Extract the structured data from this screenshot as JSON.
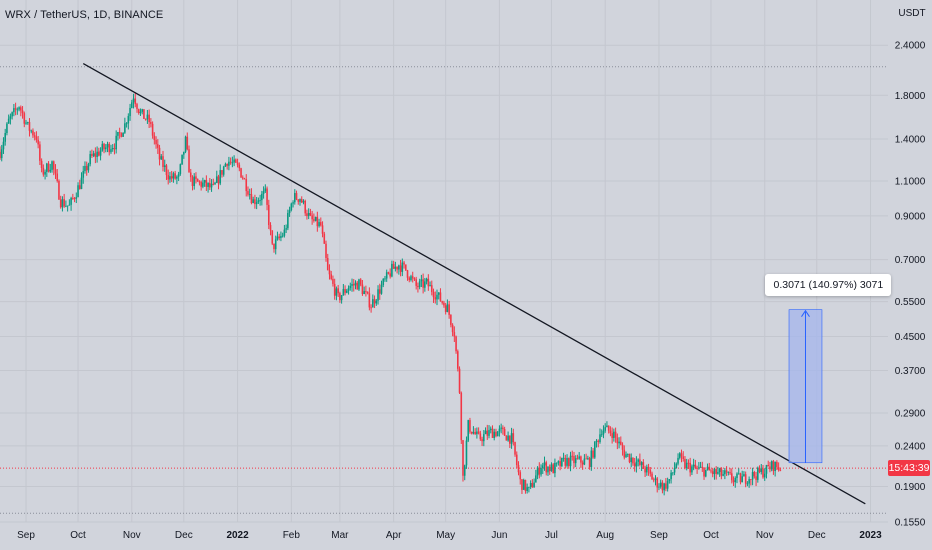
{
  "header": {
    "title": "WRX / TetherUS, 1D, BINANCE"
  },
  "price_tag": {
    "label": "15:43:39",
    "value": 0.2112,
    "color": "#f23645"
  },
  "measure": {
    "label": "0.3071 (140.97%) 3071",
    "from": 0.2178,
    "to": 0.5249,
    "start": "2022-11-15",
    "end": "2022-12-04"
  },
  "colors": {
    "up": "#089981",
    "down": "#f23645",
    "trendline": "#131722",
    "measure_fill": "#a4b6ec",
    "measure_stroke": "#2962ff"
  },
  "chart_data": {
    "type": "candlestick",
    "title": "WRX / TetherUS, 1D, BINANCE",
    "y_unit": "USDT",
    "y_scale": "log",
    "ylim": [
      0.148,
      3.0
    ],
    "xlim": [
      "2022-08-17",
      "2023-01-18"
    ],
    "y_ticks": [
      "2.4000",
      "1.8000",
      "1.4000",
      "1.1000",
      "0.9000",
      "0.7000",
      "0.5500",
      "0.4500",
      "0.3700",
      "0.2900",
      "0.2400",
      "0.1900",
      "0.1550"
    ],
    "x_ticks": [
      {
        "label": "Sep",
        "date": "2021-09-01"
      },
      {
        "label": "Oct",
        "date": "2021-10-01"
      },
      {
        "label": "Nov",
        "date": "2021-11-01"
      },
      {
        "label": "Dec",
        "date": "2021-12-01"
      },
      {
        "label": "2022",
        "date": "2022-01-01"
      },
      {
        "label": "Feb",
        "date": "2022-02-01"
      },
      {
        "label": "Mar",
        "date": "2022-03-01"
      },
      {
        "label": "Apr",
        "date": "2022-04-01"
      },
      {
        "label": "May",
        "date": "2022-05-01"
      },
      {
        "label": "Jun",
        "date": "2022-06-01"
      },
      {
        "label": "Jul",
        "date": "2022-07-01"
      },
      {
        "label": "Aug",
        "date": "2022-08-01"
      },
      {
        "label": "Sep",
        "date": "2022-09-01"
      },
      {
        "label": "Oct",
        "date": "2022-10-01"
      },
      {
        "label": "Nov",
        "date": "2022-11-01"
      },
      {
        "label": "Dec",
        "date": "2022-12-01"
      },
      {
        "label": "2023",
        "date": "2023-01-01"
      }
    ],
    "horizontal_levels": [
      2.12,
      0.163
    ],
    "trendline": [
      {
        "date": "2021-10-04",
        "price": 2.16
      },
      {
        "date": "2022-12-29",
        "price": 0.172
      }
    ],
    "price_path": [
      [
        "2021-08-17",
        1.3
      ],
      [
        "2021-08-22",
        1.55
      ],
      [
        "2021-08-28",
        1.7
      ],
      [
        "2021-09-02",
        1.5
      ],
      [
        "2021-09-07",
        1.42
      ],
      [
        "2021-09-10",
        1.15
      ],
      [
        "2021-09-16",
        1.22
      ],
      [
        "2021-09-21",
        0.98
      ],
      [
        "2021-09-26",
        0.95
      ],
      [
        "2021-10-02",
        1.08
      ],
      [
        "2021-10-08",
        1.25
      ],
      [
        "2021-10-15",
        1.32
      ],
      [
        "2021-10-22",
        1.36
      ],
      [
        "2021-10-28",
        1.52
      ],
      [
        "2021-11-02",
        1.8
      ],
      [
        "2021-11-06",
        1.62
      ],
      [
        "2021-11-11",
        1.55
      ],
      [
        "2021-11-17",
        1.25
      ],
      [
        "2021-11-23",
        1.12
      ],
      [
        "2021-11-28",
        1.12
      ],
      [
        "2021-12-02",
        1.38
      ],
      [
        "2021-12-05",
        1.1
      ],
      [
        "2021-12-12",
        1.08
      ],
      [
        "2021-12-18",
        1.05
      ],
      [
        "2021-12-26",
        1.24
      ],
      [
        "2022-01-02",
        1.18
      ],
      [
        "2022-01-10",
        0.98
      ],
      [
        "2022-01-17",
        1.02
      ],
      [
        "2022-01-21",
        0.75
      ],
      [
        "2022-01-28",
        0.82
      ],
      [
        "2022-02-02",
        1.0
      ],
      [
        "2022-02-06",
        1.0
      ],
      [
        "2022-02-12",
        0.88
      ],
      [
        "2022-02-18",
        0.85
      ],
      [
        "2022-02-22",
        0.65
      ],
      [
        "2022-02-28",
        0.56
      ],
      [
        "2022-03-06",
        0.6
      ],
      [
        "2022-03-12",
        0.61
      ],
      [
        "2022-03-19",
        0.54
      ],
      [
        "2022-03-25",
        0.6
      ],
      [
        "2022-03-31",
        0.66
      ],
      [
        "2022-04-04",
        0.68
      ],
      [
        "2022-04-08",
        0.66
      ],
      [
        "2022-04-14",
        0.6
      ],
      [
        "2022-04-20",
        0.61
      ],
      [
        "2022-04-26",
        0.57
      ],
      [
        "2022-05-02",
        0.53
      ],
      [
        "2022-05-06",
        0.46
      ],
      [
        "2022-05-09",
        0.33
      ],
      [
        "2022-05-11",
        0.2
      ],
      [
        "2022-05-14",
        0.27
      ],
      [
        "2022-05-20",
        0.25
      ],
      [
        "2022-05-27",
        0.26
      ],
      [
        "2022-06-02",
        0.26
      ],
      [
        "2022-06-08",
        0.25
      ],
      [
        "2022-06-13",
        0.195
      ],
      [
        "2022-06-18",
        0.185
      ],
      [
        "2022-06-25",
        0.215
      ],
      [
        "2022-07-02",
        0.21
      ],
      [
        "2022-07-09",
        0.22
      ],
      [
        "2022-07-16",
        0.22
      ],
      [
        "2022-07-23",
        0.22
      ],
      [
        "2022-07-30",
        0.265
      ],
      [
        "2022-08-05",
        0.26
      ],
      [
        "2022-08-12",
        0.23
      ],
      [
        "2022-08-18",
        0.22
      ],
      [
        "2022-08-24",
        0.21
      ],
      [
        "2022-08-30",
        0.195
      ],
      [
        "2022-09-04",
        0.19
      ],
      [
        "2022-09-08",
        0.2
      ],
      [
        "2022-09-12",
        0.225
      ],
      [
        "2022-09-16",
        0.215
      ],
      [
        "2022-09-22",
        0.21
      ],
      [
        "2022-09-28",
        0.208
      ],
      [
        "2022-10-04",
        0.205
      ],
      [
        "2022-10-09",
        0.203
      ],
      [
        "2022-10-14",
        0.198
      ],
      [
        "2022-10-20",
        0.199
      ],
      [
        "2022-10-26",
        0.203
      ],
      [
        "2022-11-01",
        0.208
      ],
      [
        "2022-11-06",
        0.215
      ],
      [
        "2022-11-10",
        0.211
      ]
    ]
  }
}
